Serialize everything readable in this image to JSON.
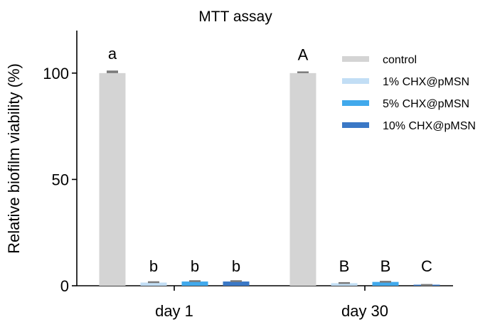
{
  "chart_data": {
    "type": "bar",
    "title": "MTT assay",
    "xlabel": "",
    "ylabel": "Relative biofilm viability (%)",
    "ylim": [
      0,
      120
    ],
    "yticks": [
      0,
      50,
      100
    ],
    "grid": false,
    "legend_position": "top-right",
    "categories": [
      "day 1",
      "day 30"
    ],
    "series": [
      {
        "name": "control",
        "color": "#d4d4d4",
        "values": [
          100,
          100
        ],
        "errors": [
          1.2,
          0.8
        ],
        "letters": [
          "a",
          "A"
        ]
      },
      {
        "name": "1% CHX@pMSN",
        "color": "#c2def5",
        "values": [
          1.5,
          1.2
        ],
        "errors": [
          0.6,
          0.5
        ],
        "letters": [
          "b",
          "B"
        ]
      },
      {
        "name": "5% CHX@pMSN",
        "color": "#41a9ec",
        "values": [
          2.0,
          1.8
        ],
        "errors": [
          0.6,
          0.5
        ],
        "letters": [
          "b",
          "B"
        ]
      },
      {
        "name": "10% CHX@pMSN",
        "color": "#3a78c6",
        "values": [
          2.0,
          0.5
        ],
        "errors": [
          0.6,
          0.3
        ],
        "letters": [
          "b",
          "C"
        ]
      }
    ]
  }
}
